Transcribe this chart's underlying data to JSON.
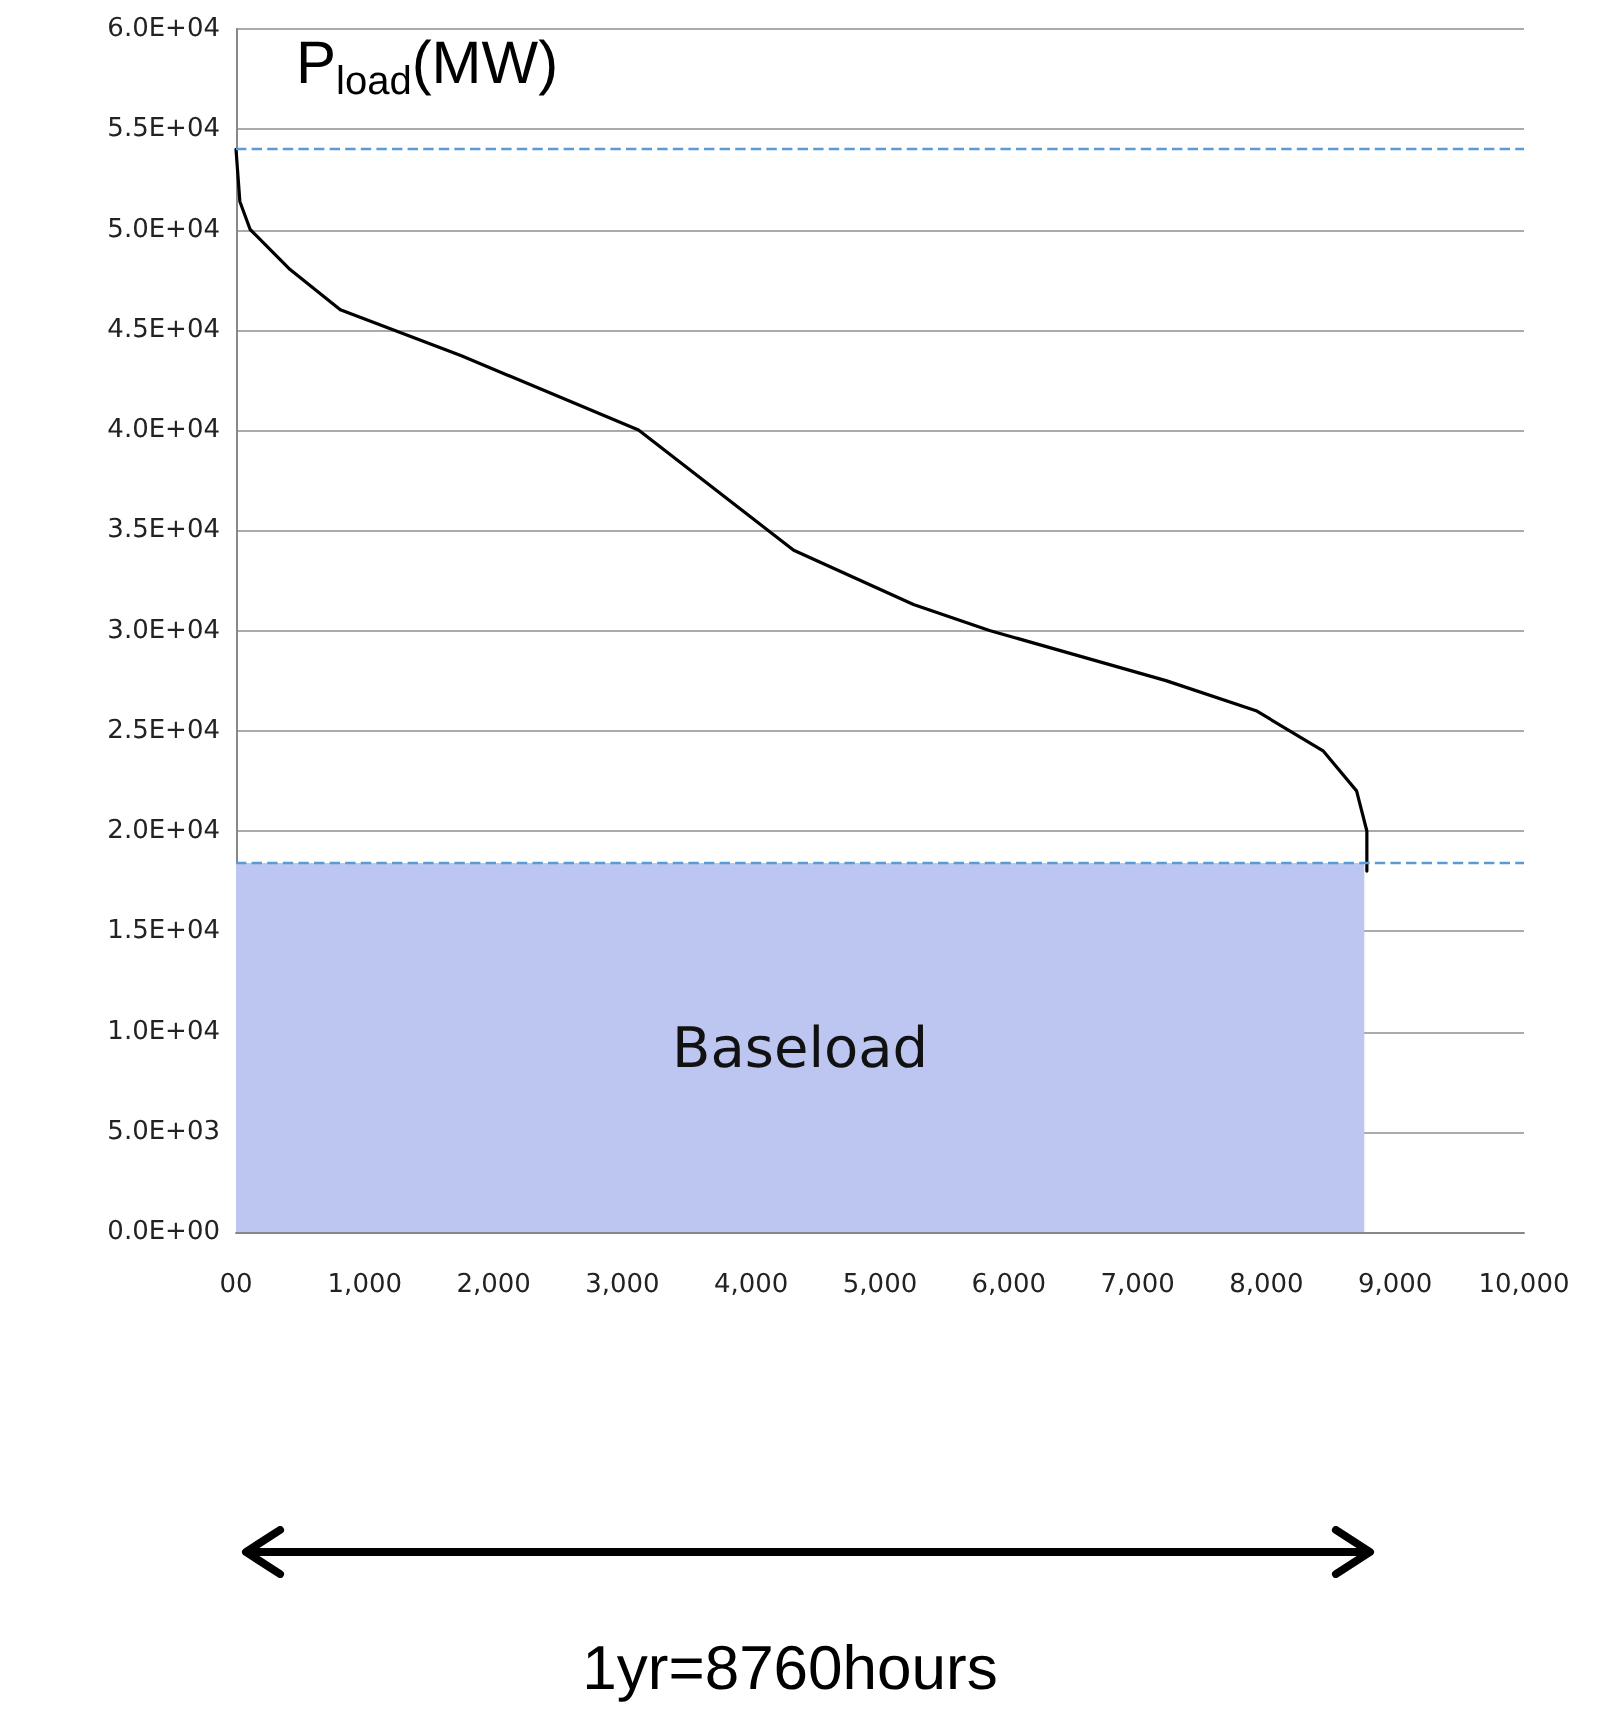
{
  "chart_data": {
    "type": "line",
    "title": "P$_{load}$(MW)",
    "annotations": [
      "1yr=8760hours"
    ],
    "series": [
      {
        "name": "Baseload",
        "type": "area",
        "color": "#bcc6f0",
        "x": [
          0,
          8760
        ],
        "values": [
          18400,
          18400
        ]
      },
      {
        "color": "#000000",
        "x": [
          0,
          30,
          110,
          420,
          810,
          1750,
          3125,
          4330,
          5260,
          5850,
          7220,
          7920,
          8440,
          8700,
          8780,
          8780
        ],
        "values": [
          54000,
          51400,
          50000,
          48000,
          46000,
          43700,
          40000,
          34000,
          31300,
          30000,
          27500,
          26000,
          24000,
          22000,
          20000,
          18000
        ]
      }
    ],
    "xlim": [
      0,
      10000
    ],
    "xticks": [
      {
        "value": 0,
        "label": "00"
      },
      {
        "value": 1000,
        "label": "1,000"
      },
      {
        "value": 2000,
        "label": "2,000"
      },
      {
        "value": 3000,
        "label": "3,000"
      },
      {
        "value": 4000,
        "label": "4,000"
      },
      {
        "value": 5000,
        "label": "5,000"
      },
      {
        "value": 6000,
        "label": "6,000"
      },
      {
        "value": 7000,
        "label": "7,000"
      },
      {
        "value": 8000,
        "label": "8,000"
      },
      {
        "value": 9000,
        "label": "9,000"
      },
      {
        "value": 10000,
        "label": "10,000"
      }
    ],
    "ylim": [
      0,
      60000
    ],
    "yticks": [
      {
        "value": 0,
        "label": "0.0E+00"
      },
      {
        "value": 5000,
        "label": "5.0E+03"
      },
      {
        "value": 10000,
        "label": "1.0E+04"
      },
      {
        "value": 15000,
        "label": "1.5E+04"
      },
      {
        "value": 20000,
        "label": "2.0E+04"
      },
      {
        "value": 25000,
        "label": "2.5E+04"
      },
      {
        "value": 30000,
        "label": "3.0E+04"
      },
      {
        "value": 35000,
        "label": "3.5E+04"
      },
      {
        "value": 40000,
        "label": "4.0E+04"
      },
      {
        "value": 45000,
        "label": "4.5E+04"
      },
      {
        "value": 50000,
        "label": "5.0E+04"
      },
      {
        "value": 55000,
        "label": "5.5E+04"
      },
      {
        "value": 60000,
        "label": "6.0E+04"
      }
    ],
    "ref_lines": [
      {
        "axis": "y",
        "value": 54000,
        "color": "#5b9bd5",
        "line_style": "dashed"
      },
      {
        "axis": "y",
        "value": 18400,
        "color": "#5b9bd5",
        "line_style": "dashed"
      }
    ],
    "grid": "y",
    "marker": "none",
    "line_style": "solid"
  }
}
